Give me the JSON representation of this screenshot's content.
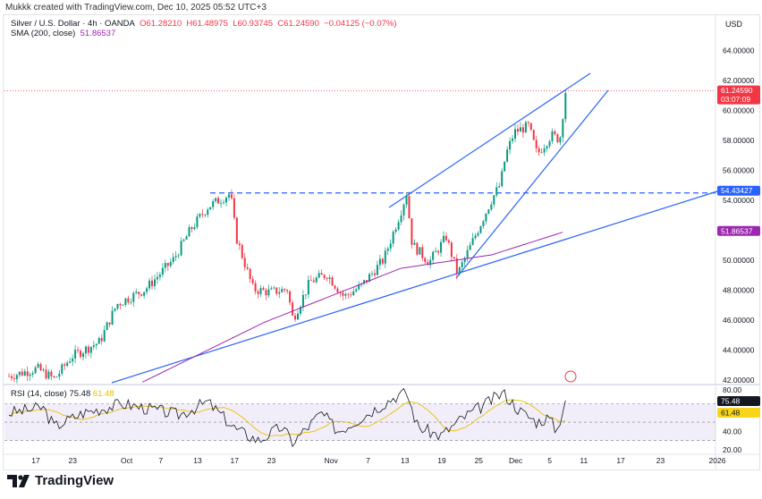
{
  "credit": "Mukkk created with TradingView.com, Dec 10, 2025 05:52 UTC+3",
  "legend": {
    "symbol": "Silver / U.S. Dollar · 4h · OANDA",
    "o": "O61.28210",
    "h": "H61.48975",
    "l": "L60.93745",
    "c": "C61.24590",
    "chg": "−0.04125 (−0.07%)",
    "sma_label": "SMA (200, close)",
    "sma_value": "51.86537",
    "rsi_label": "RSI (14, close)",
    "rsi_value": "75.48",
    "rsi_ma": "61.48"
  },
  "currency": "USD",
  "brand": "TradingView",
  "colors": {
    "up": "#089981",
    "down": "#f23645",
    "sma": "#9c27b0",
    "trend": "#2962ff",
    "rsi": "#131722",
    "rsi_ma": "#e5c100"
  },
  "chart_data": {
    "type": "candlestick",
    "price_ticks": [
      "64.00000",
      "62.00000",
      "60.00000",
      "58.00000",
      "56.00000",
      "54.00000",
      "50.00000",
      "48.00000",
      "46.00000",
      "44.00000",
      "42.00000"
    ],
    "price_tick_values": [
      64,
      62,
      60,
      58,
      56,
      54,
      50,
      48,
      46,
      44,
      42
    ],
    "ylim": [
      42,
      64
    ],
    "last_price": "61.24590",
    "countdown": "03:07:09",
    "level_label": "54.43427",
    "level": 54.43427,
    "sma_label": "51.86537",
    "sma_last": 51.86537,
    "x_ticks": [
      "17",
      "23",
      "Oct",
      "7",
      "13",
      "17",
      "23",
      "Nov",
      "7",
      "13",
      "19",
      "25",
      "Dec",
      "5",
      "11",
      "17",
      "23",
      "2026"
    ],
    "x_tick_pos": [
      0,
      0.065,
      0.16,
      0.22,
      0.285,
      0.35,
      0.415,
      0.52,
      0.585,
      0.65,
      0.715,
      0.78,
      0.845,
      0.905,
      0.965,
      1.03,
      1.1,
      1.2
    ],
    "close_path": [
      [
        0,
        42.2
      ],
      [
        0.05,
        42.7
      ],
      [
        0.08,
        42
      ],
      [
        0.11,
        43.5
      ],
      [
        0.16,
        44.5
      ],
      [
        0.19,
        47
      ],
      [
        0.24,
        48
      ],
      [
        0.29,
        50
      ],
      [
        0.32,
        52
      ],
      [
        0.35,
        53.5
      ],
      [
        0.39,
        54.4
      ],
      [
        0.4,
        51.5
      ],
      [
        0.43,
        48
      ],
      [
        0.46,
        47.8
      ],
      [
        0.49,
        48
      ],
      [
        0.5,
        46
      ],
      [
        0.53,
        48.5
      ],
      [
        0.56,
        49
      ],
      [
        0.59,
        47.5
      ],
      [
        0.62,
        48.2
      ],
      [
        0.66,
        50
      ],
      [
        0.69,
        53.2
      ],
      [
        0.7,
        54.4
      ],
      [
        0.71,
        51
      ],
      [
        0.74,
        49.8
      ],
      [
        0.77,
        51.5
      ],
      [
        0.79,
        49
      ],
      [
        0.82,
        51.5
      ],
      [
        0.85,
        54
      ],
      [
        0.865,
        55
      ],
      [
        0.875,
        57
      ],
      [
        0.89,
        58.5
      ],
      [
        0.915,
        58.9
      ],
      [
        0.93,
        57
      ],
      [
        0.955,
        58.3
      ],
      [
        0.97,
        58
      ],
      [
        0.98,
        61.2
      ]
    ],
    "sma_path": [
      [
        0.235,
        41.8
      ],
      [
        0.45,
        45.8
      ],
      [
        0.69,
        49.4
      ],
      [
        0.85,
        50.3
      ],
      [
        0.98,
        51.87
      ]
    ],
    "rsi_ticks": [
      "80.00",
      "40.00",
      "20.00"
    ],
    "rsi_tick_values": [
      80,
      40,
      20
    ],
    "rsi_path": [
      [
        0,
        60
      ],
      [
        0.06,
        66
      ],
      [
        0.08,
        45
      ],
      [
        0.13,
        60
      ],
      [
        0.2,
        70
      ],
      [
        0.3,
        58
      ],
      [
        0.35,
        72
      ],
      [
        0.4,
        42
      ],
      [
        0.44,
        30
      ],
      [
        0.48,
        45
      ],
      [
        0.5,
        28
      ],
      [
        0.55,
        60
      ],
      [
        0.58,
        40
      ],
      [
        0.62,
        55
      ],
      [
        0.68,
        78
      ],
      [
        0.7,
        82
      ],
      [
        0.72,
        45
      ],
      [
        0.76,
        35
      ],
      [
        0.8,
        55
      ],
      [
        0.84,
        70
      ],
      [
        0.87,
        82
      ],
      [
        0.9,
        62
      ],
      [
        0.93,
        50
      ],
      [
        0.95,
        55
      ],
      [
        0.965,
        40
      ],
      [
        0.98,
        75.48
      ]
    ]
  }
}
